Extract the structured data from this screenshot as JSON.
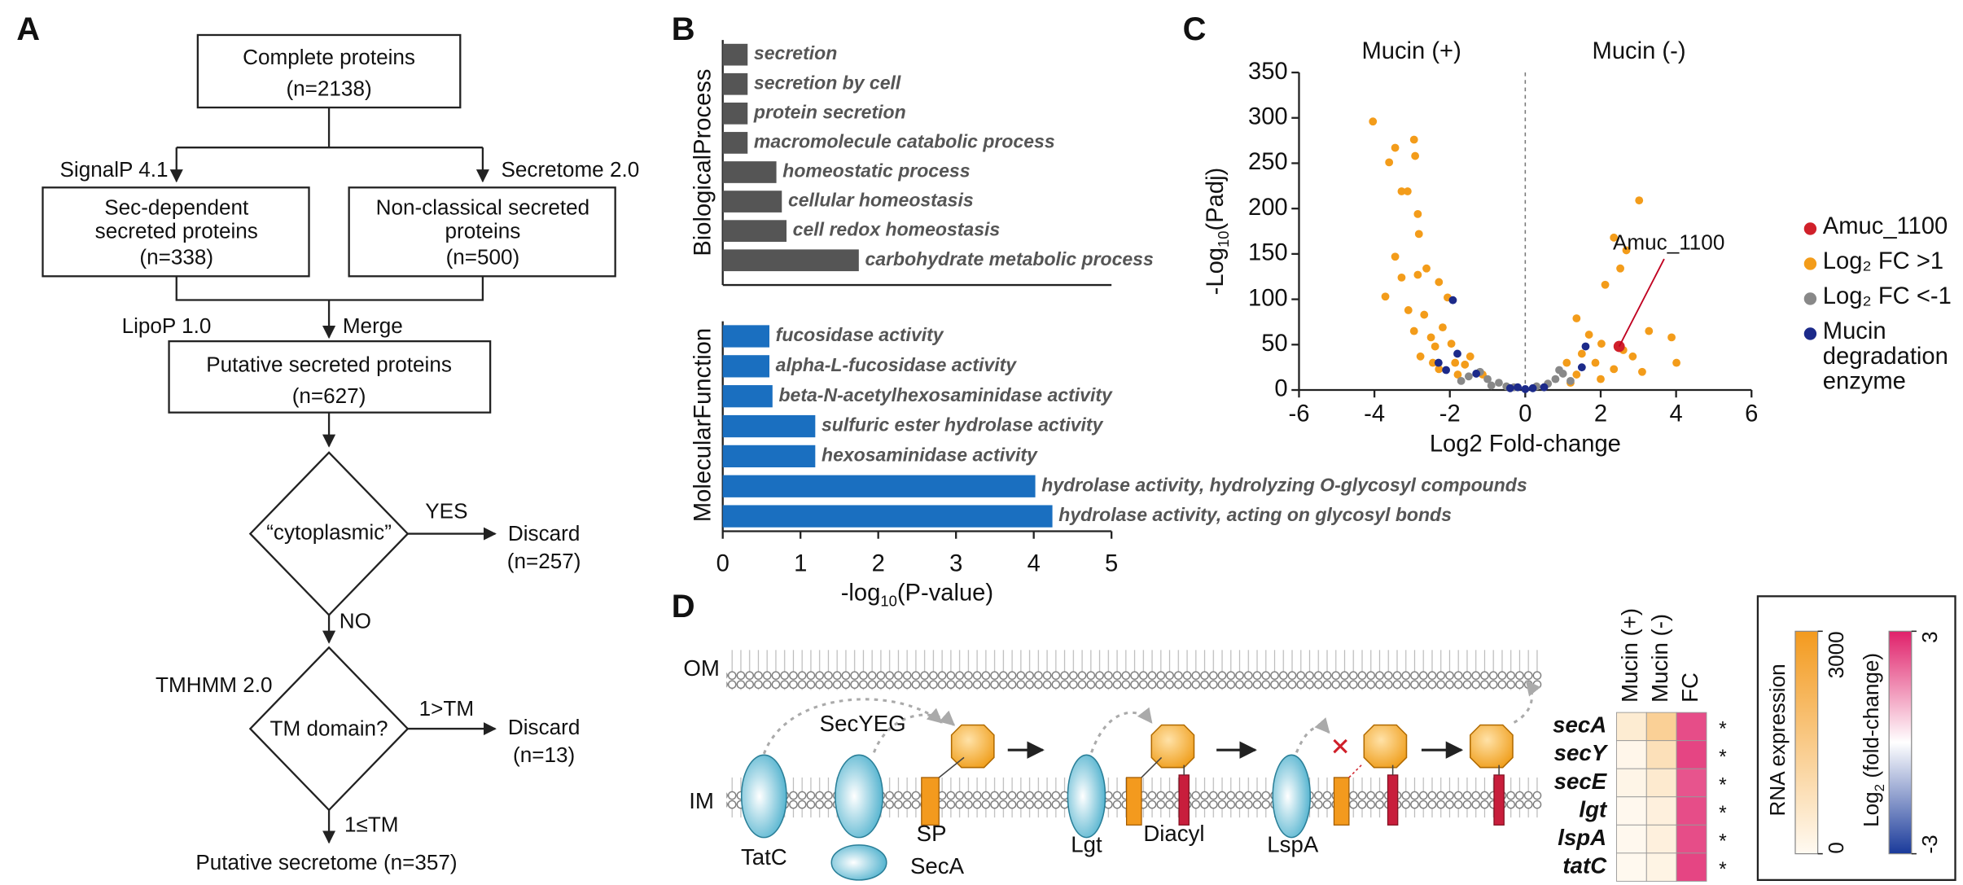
{
  "panel_labels": [
    "A",
    "B",
    "C",
    "D"
  ],
  "flowchart": {
    "nodes": [
      {
        "lines": [
          "Complete proteins",
          "(n=2138)"
        ]
      },
      {
        "lines": [
          "Sec-dependent",
          "secreted proteins",
          "(n=338)"
        ]
      },
      {
        "lines": [
          "Non-classical secreted",
          "proteins",
          "(n=500)"
        ]
      },
      {
        "lines": [
          "Putative secreted proteins",
          "(n=627)"
        ]
      },
      {
        "lines": [
          "“cytoplasmic”"
        ]
      },
      {
        "lines": [
          "TM domain?"
        ]
      },
      {
        "lines": [
          "Discard",
          "(n=257)"
        ]
      },
      {
        "lines": [
          "Discard",
          "(n=13)"
        ]
      },
      {
        "lines": [
          "Putative secretome (n=357)"
        ]
      }
    ],
    "edge_labels": [
      "SignalP 4.1",
      "Secretome 2.0",
      "LipoP 1.0",
      "Merge",
      "YES",
      "NO",
      "TMHMM 2.0",
      "1>TM",
      "1≤TM"
    ]
  },
  "chart_data": [
    {
      "type": "bar",
      "group_label": "BiologicalProcess",
      "color": "#555555",
      "categories": [
        "secretion",
        "secretion by cell",
        "protein secretion",
        "macromolecule catabolic process",
        "homeostatic process",
        "cellular homeostasis",
        "cell redox homeostasis",
        "carbohydrate metabolic process"
      ],
      "values": [
        0.32,
        0.32,
        0.32,
        0.32,
        0.69,
        0.76,
        0.82,
        1.75
      ],
      "xlim": [
        0,
        5
      ]
    },
    {
      "type": "bar",
      "group_label": "MolecularFunction",
      "color": "#1a6fc0",
      "categories": [
        "fucosidase activity",
        "alpha-L-fucosidase activity",
        "beta-N-acetylhexosaminidase activity",
        "sulfuric ester hydrolase activity",
        "hexosaminidase activity",
        "hydrolase activity, hydrolyzing O-glycosyl compounds",
        "hydrolase activity, acting on glycosyl bonds"
      ],
      "values": [
        0.6,
        0.6,
        0.64,
        1.19,
        1.19,
        4.02,
        4.24
      ],
      "xlim": [
        0,
        5
      ],
      "xticks": [
        0,
        1,
        2,
        3,
        4,
        5
      ],
      "xlabel": [
        "-log",
        "10",
        "(P-value)"
      ]
    },
    {
      "type": "scatter",
      "top_labels": [
        "Mucin (+)",
        "Mucin (-)"
      ],
      "xlabel": "Log2 Fold-change",
      "ylabel": [
        "-Log",
        "10",
        "(Padj)"
      ],
      "xlim": [
        -6,
        6
      ],
      "xticks": [
        -6,
        -4,
        -2,
        0,
        2,
        4,
        6
      ],
      "ylim": [
        0,
        350
      ],
      "yticks": [
        0,
        50,
        100,
        150,
        200,
        250,
        300,
        350
      ],
      "vline": 0,
      "annotation": "Amuc_1100",
      "series": [
        {
          "name": "Log₂ FC >1",
          "color": "#f39c1a",
          "x": [
            -4.04,
            -3.61,
            -3.45,
            -2.95,
            -2.92,
            -3.28,
            -3.12,
            -2.85,
            -2.82,
            -3.45,
            -3.71,
            -3.28,
            -2.85,
            -2.62,
            -2.29,
            -2.06,
            -2.68,
            -2.95,
            -2.19,
            -2.39,
            -2.78,
            -1.96,
            -1.46,
            -1.79,
            -2.29,
            -1.13,
            -2.45,
            -1.86,
            -3.1,
            -2.5,
            -1.6,
            3.02,
            2.35,
            2.68,
            2.12,
            2.52,
            1.36,
            1.69,
            2.02,
            3.28,
            3.88,
            4.01,
            1.86,
            1.1,
            1.36,
            2.35,
            2.85,
            1.5,
            2.0,
            1.2,
            2.6,
            3.1
          ],
          "y": [
            296,
            251,
            267,
            276,
            258,
            219,
            219,
            194,
            172,
            147,
            103,
            124,
            127,
            134,
            119,
            102,
            83,
            65,
            69,
            48,
            37,
            51,
            37,
            17,
            23,
            17,
            30,
            30,
            88,
            58,
            28,
            209,
            168,
            154,
            116,
            134,
            79,
            61,
            51,
            65,
            58,
            30,
            30,
            30,
            17,
            23,
            37,
            40,
            12,
            8,
            44,
            20
          ]
        },
        {
          "name": "Log₂ FC <-1",
          "color": "#888888",
          "x": [
            -1.5,
            -1.0,
            -0.7,
            -0.3,
            0.3,
            0.6,
            0.8,
            -1.2,
            1.0,
            -1.7,
            -0.9,
            0.5,
            1.2,
            -0.5,
            0.9
          ],
          "y": [
            15,
            12,
            8,
            3,
            4,
            7,
            12,
            20,
            18,
            10,
            5,
            3,
            10,
            4,
            22
          ]
        },
        {
          "name": "Mucin degradation enzyme",
          "color": "#1c2a8a",
          "x": [
            -1.92,
            -2.3,
            -1.3,
            -0.4,
            0.0,
            0.2,
            1.6,
            -0.2,
            0.5,
            1.5,
            -2.1,
            -1.8
          ],
          "y": [
            99,
            30,
            18,
            2,
            1,
            2,
            48,
            3,
            3,
            25,
            22,
            40
          ]
        },
        {
          "name": "Amuc_1100",
          "color": "#d0202a",
          "x": [
            2.49
          ],
          "y": [
            48
          ]
        }
      ]
    }
  ],
  "diagram": {
    "labels": [
      "OM",
      "IM",
      "TatC",
      "SecYEG",
      "SecA",
      "SP",
      "Lgt",
      "Diacyl",
      "LspA"
    ]
  },
  "heatmap": {
    "columns": [
      "Mucin (+)",
      "Mucin (-)",
      "FC"
    ],
    "rows": [
      "secA",
      "secY",
      "secE",
      "lgt",
      "lspA",
      "tatC"
    ],
    "rna_expression": [
      [
        450,
        1300
      ],
      [
        120,
        800
      ],
      [
        150,
        500
      ],
      [
        60,
        300
      ],
      [
        60,
        300
      ],
      [
        40,
        200
      ]
    ],
    "fold_change": [
      2.4,
      2.5,
      2.3,
      2.4,
      2.4,
      2.5
    ],
    "significance": [
      "*",
      "*",
      "*",
      "*",
      "*",
      "*"
    ],
    "rna_colorbar": {
      "label": "RNA expression",
      "range": [
        0,
        3000
      ],
      "ticks": [
        0,
        3000
      ]
    },
    "fc_colorbar": {
      "label": [
        "Log",
        "2",
        " (fold-change)"
      ],
      "range": [
        -3,
        3
      ],
      "ticks": [
        -3,
        3
      ]
    }
  }
}
